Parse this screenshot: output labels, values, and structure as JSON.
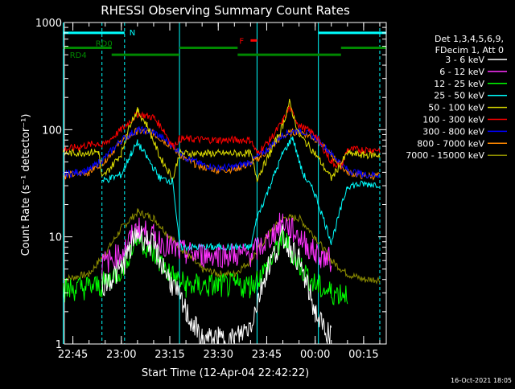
{
  "chart_data": {
    "type": "line",
    "title": "RHESSI Observing Summary Count Rates",
    "xlabel": "Start Time (12-Apr-04 22:42:22)",
    "ylabel": "Count Rate (s⁻¹ detector⁻¹)",
    "yscale": "log",
    "ylim": [
      1,
      1000
    ],
    "xlim": [
      "22:42:22",
      "00:22:00"
    ],
    "x_ticks": [
      "22:45",
      "23:00",
      "23:15",
      "23:30",
      "23:45",
      "00:00",
      "00:15"
    ],
    "y_ticks": [
      "1",
      "10",
      "100",
      "1000"
    ],
    "legend_header": [
      "Det 1,3,4,5,6,9,",
      "FDecim 1, Att 0"
    ],
    "legend_position": "right",
    "timestamp": "16-Oct-2021 18:05",
    "series": [
      {
        "name": "3 - 6 keV",
        "color": "#ffffff",
        "x": [
          "22:42",
          "22:53",
          "22:54",
          "23:00",
          "23:05",
          "23:10",
          "23:15",
          "23:20",
          "23:25",
          "23:30",
          "23:35",
          "23:40",
          "23:45",
          "23:50",
          "23:55",
          "00:00",
          "00:02",
          "00:05"
        ],
        "y": [
          null,
          null,
          3.5,
          5,
          11,
          8,
          4,
          2,
          1.1,
          1.1,
          1.1,
          1.5,
          5,
          10,
          6,
          2,
          1.5,
          1.2
        ]
      },
      {
        "name": "6 - 12 keV",
        "color": "#ff33ff",
        "x": [
          "22:42",
          "22:54",
          "23:00",
          "23:05",
          "23:10",
          "23:15",
          "23:20",
          "23:25",
          "23:30",
          "23:35",
          "23:40",
          "23:45",
          "23:50",
          "23:55",
          "00:00",
          "00:05",
          "00:10"
        ],
        "y": [
          null,
          5.5,
          7,
          12,
          10,
          8,
          7,
          6.8,
          6.8,
          6.8,
          6.8,
          9,
          14,
          10,
          7,
          6,
          null
        ]
      },
      {
        "name": "12 - 25 keV",
        "color": "#00ff00",
        "x": [
          "22:42",
          "22:54",
          "23:00",
          "23:05",
          "23:10",
          "23:15",
          "23:20",
          "23:30",
          "23:40",
          "23:45",
          "23:50",
          "23:55",
          "00:00",
          "00:05",
          "00:10"
        ],
        "y": [
          3.2,
          3.5,
          5,
          10,
          7,
          4.5,
          3.5,
          3.5,
          3.5,
          5,
          10,
          5.5,
          3.5,
          3,
          3
        ]
      },
      {
        "name": "25 - 50 keV",
        "color": "#00ffff",
        "x": [
          "22:42",
          "22:53",
          "22:54",
          "23:00",
          "23:03",
          "23:05",
          "23:08",
          "23:12",
          "23:16",
          "23:18",
          "23:30",
          "23:40",
          "23:42",
          "23:46",
          "23:50",
          "23:53",
          "23:56",
          "00:00",
          "00:05",
          "00:10",
          "00:15",
          "00:20"
        ],
        "y": [
          null,
          null,
          33,
          38,
          60,
          75,
          55,
          35,
          33,
          8,
          8,
          8,
          15,
          30,
          60,
          85,
          40,
          25,
          9,
          30,
          31,
          31
        ]
      },
      {
        "name": "50 - 100 keV",
        "color": "#dddd00",
        "x": [
          "22:42",
          "22:53",
          "22:54",
          "23:00",
          "23:03",
          "23:05",
          "23:08",
          "23:12",
          "23:16",
          "23:18",
          "23:30",
          "23:40",
          "23:42",
          "23:46",
          "23:50",
          "23:52",
          "23:55",
          "00:00",
          "00:05",
          "00:10",
          "00:15",
          "00:20"
        ],
        "y": [
          60,
          62,
          35,
          60,
          120,
          150,
          110,
          55,
          35,
          60,
          60,
          60,
          35,
          60,
          110,
          180,
          90,
          60,
          35,
          60,
          58,
          58
        ]
      },
      {
        "name": "100 - 300 keV",
        "color": "#ff0000",
        "x": [
          "22:42",
          "22:53",
          "22:54",
          "23:00",
          "23:05",
          "23:10",
          "23:13",
          "23:16",
          "23:18",
          "23:30",
          "23:40",
          "23:42",
          "23:46",
          "23:50",
          "23:52",
          "23:55",
          "00:00",
          "00:05",
          "00:08",
          "00:10",
          "00:15",
          "00:20"
        ],
        "y": [
          65,
          75,
          70,
          100,
          140,
          130,
          100,
          70,
          82,
          80,
          80,
          60,
          80,
          120,
          160,
          110,
          90,
          50,
          45,
          65,
          65,
          65
        ]
      },
      {
        "name": "300 - 800 keV",
        "color": "#0000ff",
        "x": [
          "22:42",
          "22:50",
          "22:55",
          "23:00",
          "23:05",
          "23:10",
          "23:15",
          "23:20",
          "23:25",
          "23:30",
          "23:35",
          "23:40",
          "23:45",
          "23:50",
          "23:55",
          "00:00",
          "00:05",
          "00:10",
          "00:15",
          "00:20"
        ],
        "y": [
          38,
          42,
          55,
          80,
          100,
          95,
          75,
          55,
          47,
          44,
          45,
          50,
          65,
          90,
          100,
          85,
          60,
          42,
          38,
          38
        ]
      },
      {
        "name": "800 - 7000 keV",
        "color": "#ff8800",
        "x": [
          "22:42",
          "22:50",
          "22:55",
          "23:00",
          "23:05",
          "23:10",
          "23:15",
          "23:20",
          "23:25",
          "23:30",
          "23:35",
          "23:40",
          "23:45",
          "23:50",
          "23:55",
          "00:00",
          "00:05",
          "00:10",
          "00:15",
          "00:20"
        ],
        "y": [
          37,
          40,
          52,
          78,
          98,
          92,
          72,
          52,
          45,
          42,
          43,
          48,
          62,
          88,
          98,
          82,
          58,
          40,
          37,
          37
        ]
      },
      {
        "name": "7000 - 15000 keV",
        "color": "#8b8b00",
        "x": [
          "22:42",
          "22:50",
          "22:55",
          "23:00",
          "23:05",
          "23:10",
          "23:15",
          "23:20",
          "23:25",
          "23:30",
          "23:35",
          "23:40",
          "23:45",
          "23:50",
          "23:55",
          "00:00",
          "00:05",
          "00:10",
          "00:15",
          "00:20"
        ],
        "y": [
          4,
          4.5,
          7,
          12,
          17,
          15,
          10,
          7,
          5,
          4.5,
          4.5,
          6,
          10,
          15,
          15,
          10,
          6,
          4.5,
          4,
          4
        ]
      }
    ],
    "state_bars": [
      {
        "label": "N",
        "color": "#00ffff",
        "level": 800,
        "segments": [
          [
            "22:42",
            "23:01"
          ],
          [
            "00:01",
            "00:22"
          ]
        ]
      },
      {
        "label": "RD0",
        "color": "#008800",
        "level": 580,
        "segments": [
          [
            "22:42",
            "22:57"
          ],
          [
            "23:18",
            "23:36"
          ],
          [
            "00:08",
            "00:22"
          ]
        ]
      },
      {
        "label": "RD4",
        "color": "#008800",
        "level": 500,
        "segments": [
          [
            "22:57",
            "23:18"
          ],
          [
            "23:36",
            "00:08"
          ]
        ]
      },
      {
        "label": "F",
        "color": "#ff0000",
        "level": 680,
        "segments": [
          [
            "23:40",
            "23:42"
          ]
        ]
      }
    ],
    "vertical_markers": [
      {
        "x": "22:42",
        "style": "solid"
      },
      {
        "x": "22:54",
        "style": "dashed"
      },
      {
        "x": "23:01",
        "style": "dashed"
      },
      {
        "x": "23:18",
        "style": "solid"
      },
      {
        "x": "23:42",
        "style": "solid"
      },
      {
        "x": "00:01",
        "style": "solid"
      },
      {
        "x": "00:20",
        "style": "dashed"
      }
    ]
  }
}
